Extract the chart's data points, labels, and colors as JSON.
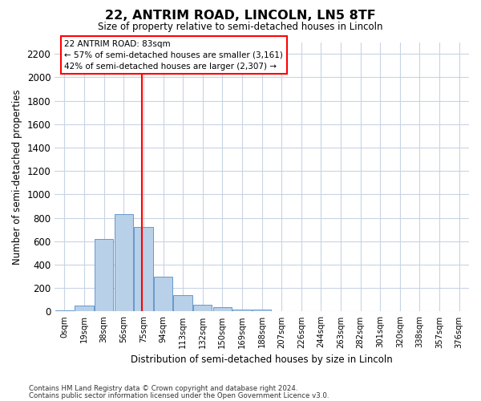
{
  "title": "22, ANTRIM ROAD, LINCOLN, LN5 8TF",
  "subtitle": "Size of property relative to semi-detached houses in Lincoln",
  "xlabel": "Distribution of semi-detached houses by size in Lincoln",
  "ylabel": "Number of semi-detached properties",
  "footnote1": "Contains HM Land Registry data © Crown copyright and database right 2024.",
  "footnote2": "Contains public sector information licensed under the Open Government Licence v3.0.",
  "bar_color": "#b8d0e8",
  "bar_edgecolor": "#6699cc",
  "grid_color": "#c8d4e4",
  "annotation_text_line1": "22 ANTRIM ROAD: 83sqm",
  "annotation_text_line2": "← 57% of semi-detached houses are smaller (3,161)",
  "annotation_text_line3": "42% of semi-detached houses are larger (2,307) →",
  "categories": [
    "0sqm",
    "19sqm",
    "38sqm",
    "56sqm",
    "75sqm",
    "94sqm",
    "113sqm",
    "132sqm",
    "150sqm",
    "169sqm",
    "188sqm",
    "207sqm",
    "226sqm",
    "244sqm",
    "263sqm",
    "282sqm",
    "301sqm",
    "320sqm",
    "338sqm",
    "357sqm",
    "376sqm"
  ],
  "values": [
    10,
    50,
    620,
    830,
    720,
    300,
    140,
    60,
    35,
    20,
    15,
    5,
    5,
    0,
    0,
    0,
    0,
    0,
    0,
    0,
    0
  ],
  "ylim": [
    0,
    2300
  ],
  "yticks": [
    0,
    200,
    400,
    600,
    800,
    1000,
    1200,
    1400,
    1600,
    1800,
    2000,
    2200
  ],
  "property_sqm": 83
}
